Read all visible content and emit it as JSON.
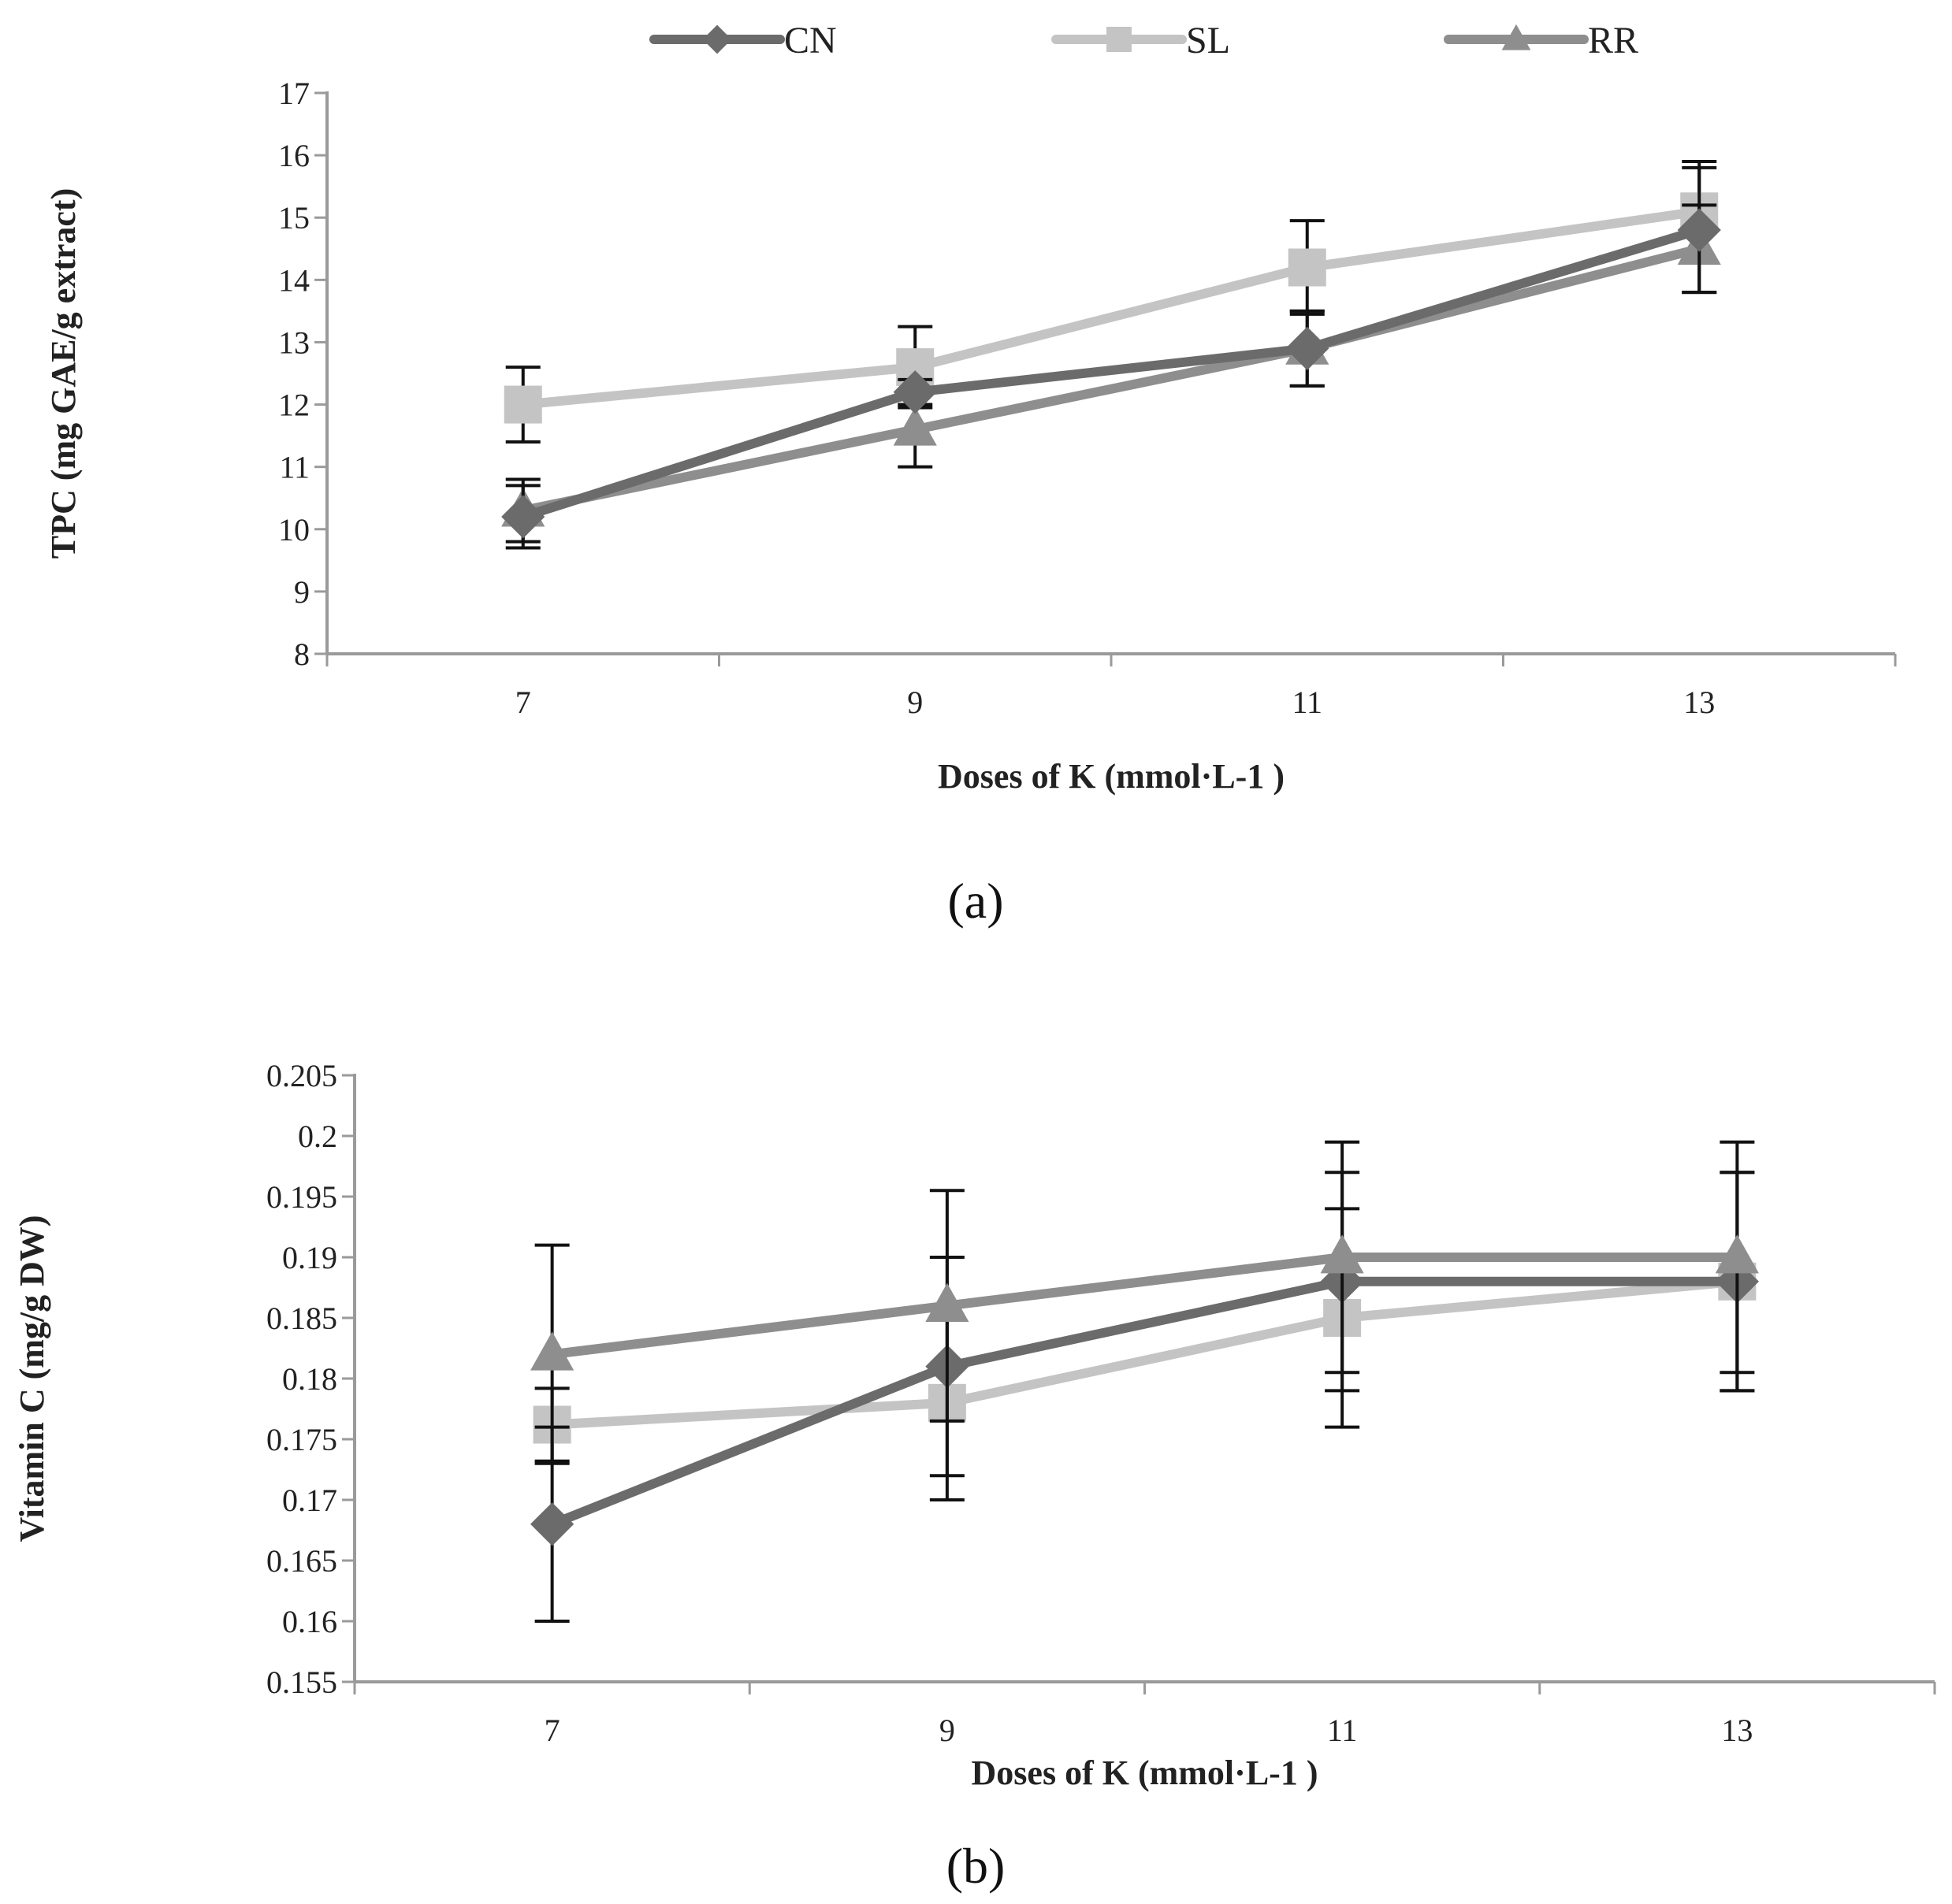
{
  "figure": {
    "panel_a_label": "(a)",
    "panel_b_label": "(b)"
  },
  "legend": [
    {
      "name": "CN",
      "marker": "diamond",
      "color": "#6b6b6b"
    },
    {
      "name": "SL",
      "marker": "square",
      "color": "#c4c4c4"
    },
    {
      "name": "RR",
      "marker": "triangle",
      "color": "#8e8e8e"
    }
  ],
  "chart_data": [
    {
      "type": "line",
      "panel": "a",
      "xlabel": "Doses of K (mmol·L-1 )",
      "ylabel": "TPC (mg GAE/g extract)",
      "x": [
        7,
        9,
        11,
        13
      ],
      "xlim": [
        6,
        14
      ],
      "x_ticks": [
        "7",
        "9",
        "11",
        "13"
      ],
      "ylim": [
        8,
        17
      ],
      "y_ticks": [
        "8",
        "9",
        "10",
        "11",
        "12",
        "13",
        "14",
        "15",
        "16",
        "17"
      ],
      "series": [
        {
          "name": "CN",
          "values": [
            10.2,
            12.2,
            12.9,
            14.8
          ],
          "err": [
            0.5,
            0.2,
            0.6,
            1.0
          ]
        },
        {
          "name": "SL",
          "values": [
            12.0,
            12.6,
            14.2,
            15.1
          ],
          "err": [
            0.6,
            0.65,
            0.75,
            0.8
          ]
        },
        {
          "name": "RR",
          "values": [
            10.3,
            11.6,
            12.9,
            14.5
          ],
          "err": [
            0.5,
            0.6,
            0.6,
            0.7
          ]
        }
      ]
    },
    {
      "type": "line",
      "panel": "b",
      "xlabel": "Doses of K (mmol·L-1 )",
      "ylabel": "Vitamin C (mg/g DW)",
      "x": [
        7,
        9,
        11,
        13
      ],
      "xlim": [
        6,
        14
      ],
      "x_ticks": [
        "7",
        "9",
        "11",
        "13"
      ],
      "ylim": [
        0.155,
        0.205
      ],
      "y_ticks": [
        "0.155",
        "0.16",
        "0.165",
        "0.17",
        "0.175",
        "0.18",
        "0.185",
        "0.19",
        "0.195",
        "0.2",
        "0.205"
      ],
      "series": [
        {
          "name": "CN",
          "values": [
            0.168,
            0.181,
            0.188,
            0.188
          ],
          "err": [
            0.008,
            0.009,
            0.009,
            0.009
          ]
        },
        {
          "name": "SL",
          "values": [
            0.1762,
            0.178,
            0.185,
            0.188
          ],
          "err": [
            0.003,
            0.008,
            0.009,
            0.009
          ]
        },
        {
          "name": "RR",
          "values": [
            0.182,
            0.186,
            0.19,
            0.19
          ],
          "err": [
            0.009,
            0.0095,
            0.0095,
            0.0095
          ]
        }
      ]
    }
  ]
}
